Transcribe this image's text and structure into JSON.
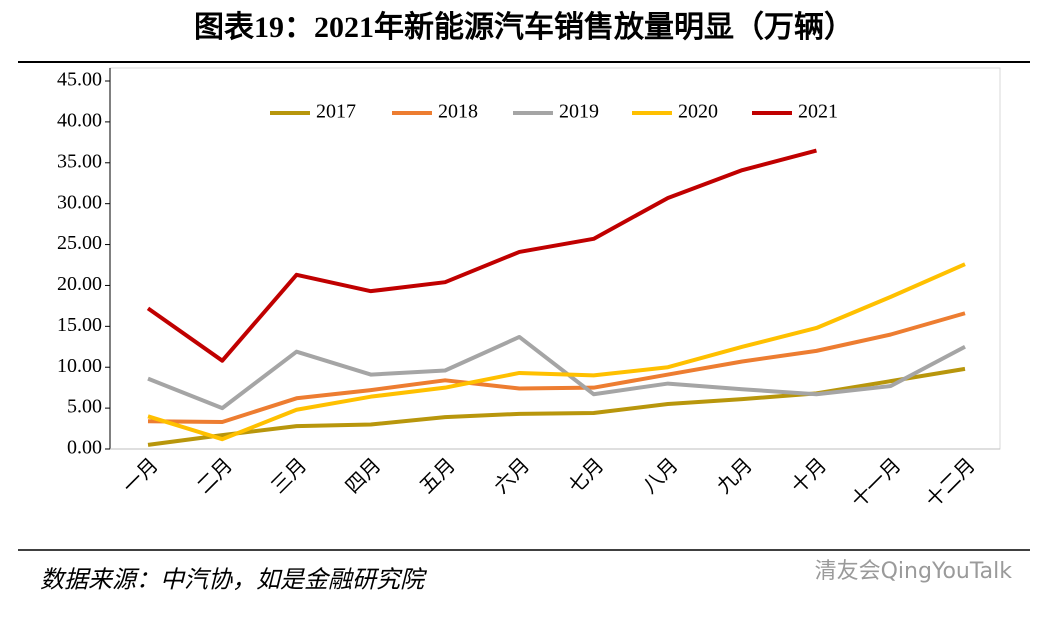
{
  "chart_data": {
    "type": "line",
    "title": "图表19：2021年新能源汽车销售放量明显（万辆）",
    "source": "数据来源：中汽协，如是金融研究院",
    "watermark": "清友会QingYouTalk",
    "categories": [
      "一月",
      "二月",
      "三月",
      "四月",
      "五月",
      "六月",
      "七月",
      "八月",
      "九月",
      "十月",
      "十一月",
      "十二月"
    ],
    "series": [
      {
        "name": "2017",
        "color": "#b8960c",
        "values": [
          0.5,
          1.7,
          2.8,
          3.0,
          3.9,
          4.3,
          4.4,
          5.5,
          6.1,
          6.8,
          8.3,
          9.8
        ]
      },
      {
        "name": "2018",
        "color": "#ed7d31",
        "values": [
          3.4,
          3.3,
          6.2,
          7.2,
          8.4,
          7.4,
          7.5,
          9.1,
          10.7,
          12.0,
          14.0,
          16.6
        ]
      },
      {
        "name": "2019",
        "color": "#a5a5a5",
        "values": [
          8.6,
          5.0,
          11.9,
          9.1,
          9.6,
          13.7,
          6.7,
          8.0,
          7.3,
          6.7,
          7.7,
          12.5
        ]
      },
      {
        "name": "2020",
        "color": "#ffc000",
        "values": [
          4.0,
          1.2,
          4.8,
          6.4,
          7.5,
          9.3,
          9.0,
          10.0,
          12.5,
          14.8,
          18.6,
          22.6
        ]
      },
      {
        "name": "2021",
        "color": "#c00000",
        "values": [
          17.2,
          10.8,
          21.3,
          19.3,
          20.4,
          24.1,
          25.7,
          30.7,
          34.1,
          36.5,
          null,
          null
        ]
      }
    ],
    "ylim": [
      0,
      45
    ],
    "yticks": [
      {
        "value": 0,
        "label": "0.00"
      },
      {
        "value": 5,
        "label": "5.00"
      },
      {
        "value": 10,
        "label": "10.00"
      },
      {
        "value": 15,
        "label": "15.00"
      },
      {
        "value": 20,
        "label": "20.00"
      },
      {
        "value": 25,
        "label": "25.00"
      },
      {
        "value": 30,
        "label": "30.00"
      },
      {
        "value": 35,
        "label": "35.00"
      },
      {
        "value": 40,
        "label": "40.00"
      },
      {
        "value": 45,
        "label": "45.00"
      }
    ],
    "legend": "top"
  }
}
